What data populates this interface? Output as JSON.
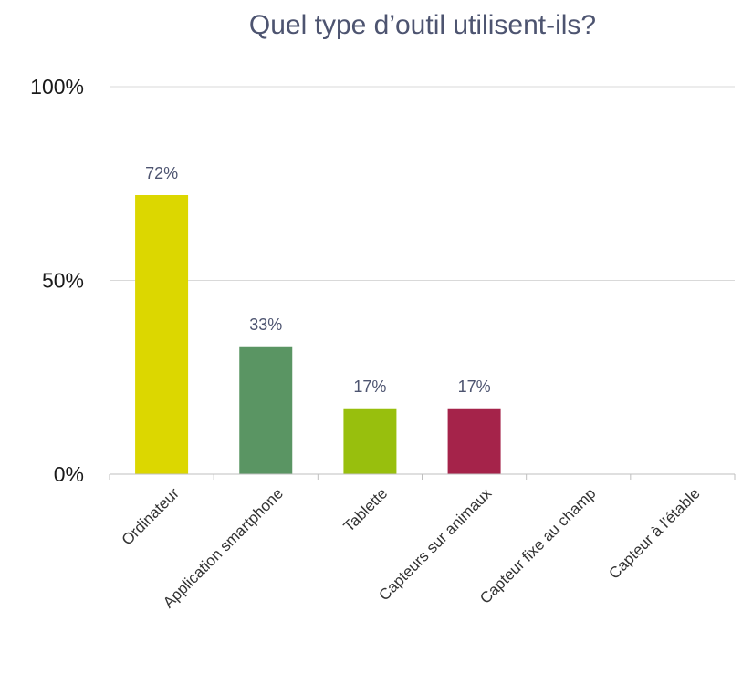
{
  "chart_data": {
    "type": "bar",
    "title": "Quel type d’outil utilisent-ils?",
    "categories": [
      "Ordinateur",
      "Application smartphone",
      "Tablette",
      "Capteurs sur animaux",
      "Capteur fixe au champ",
      "Capteur à l'étable"
    ],
    "values": [
      72,
      33,
      17,
      17,
      0,
      0
    ],
    "data_labels": [
      "72%",
      "33%",
      "17%",
      "17%",
      "",
      ""
    ],
    "colors": [
      "#dcd700",
      "#5a9563",
      "#98bf0d",
      "#a5234a",
      "#cccccc",
      "#cccccc"
    ],
    "ylim": [
      0,
      100
    ],
    "yticks": [
      0,
      50,
      100
    ],
    "ytick_labels": [
      "0%",
      "50%",
      "100%"
    ],
    "xlabel": "",
    "ylabel": "",
    "grid": true,
    "legend": "none"
  }
}
